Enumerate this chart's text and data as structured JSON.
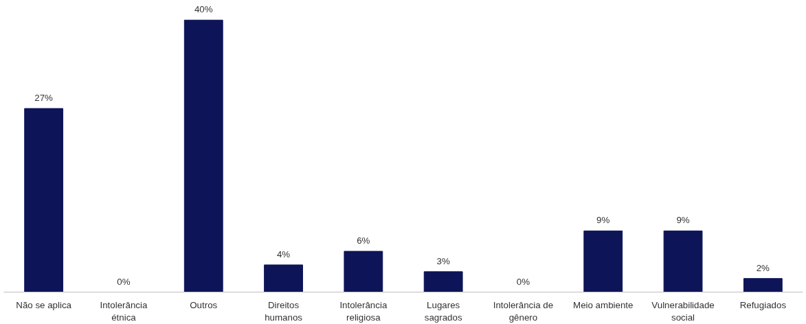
{
  "chart_data": {
    "type": "bar",
    "categories": [
      "Não se aplica",
      "Intolerância étnica",
      "Outros",
      "Direitos humanos",
      "Intolerância religiosa",
      "Lugares sagrados",
      "Intolerância de gênero",
      "Meio ambiente",
      "Vulnerabilidade social",
      "Refugiados"
    ],
    "values": [
      27,
      0,
      40,
      4,
      6,
      3,
      0,
      9,
      9,
      2
    ],
    "value_labels": [
      "27%",
      "0%",
      "40%",
      "4%",
      "6%",
      "3%",
      "0%",
      "9%",
      "9%",
      "2%"
    ],
    "color": "#0d1458",
    "grid": false
  }
}
